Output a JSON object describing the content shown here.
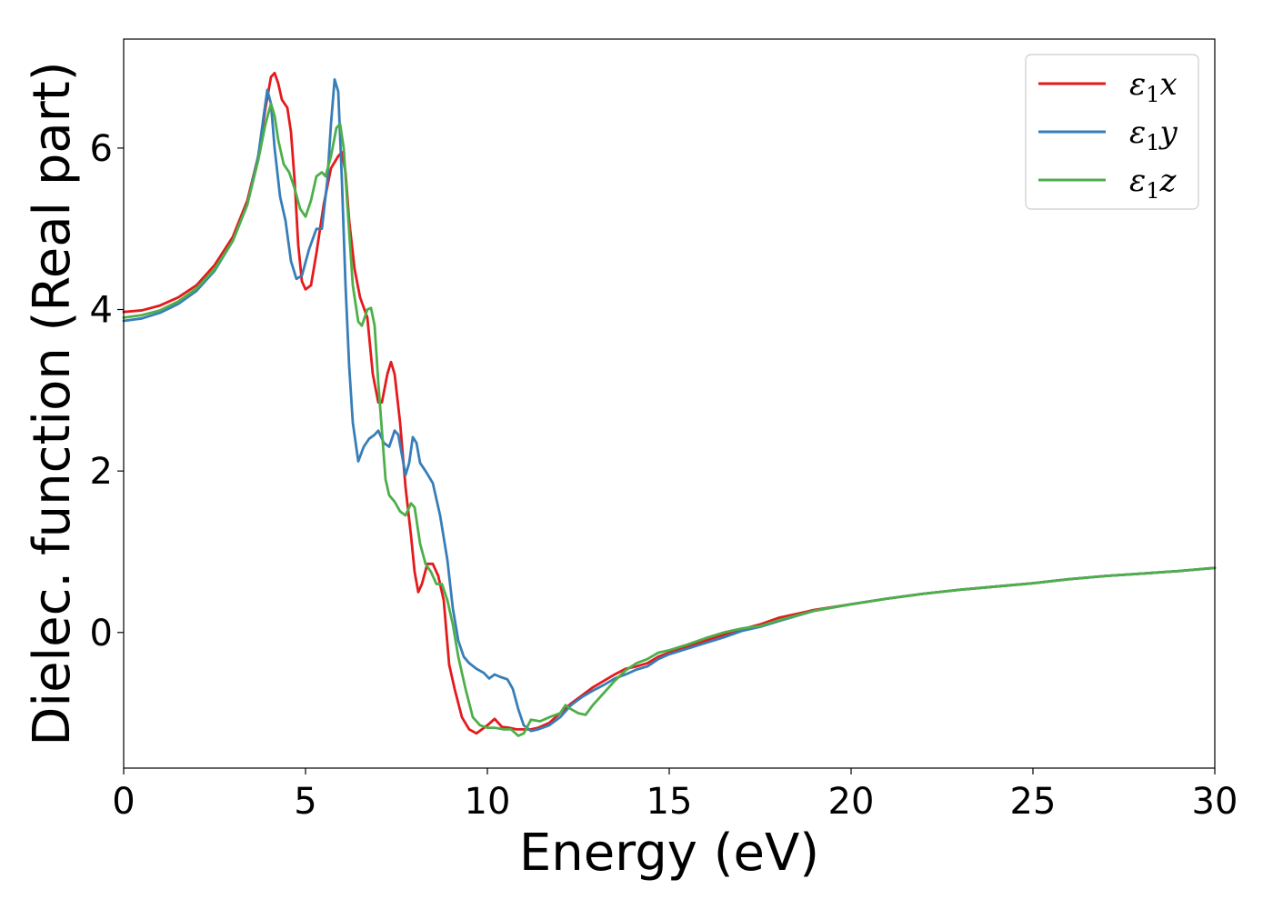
{
  "chart_data": {
    "type": "line",
    "xlabel": "Energy (eV)",
    "ylabel": "Dielec. function (Real part)",
    "xlim": [
      0,
      30
    ],
    "ylim": [
      -1.68,
      7.35
    ],
    "x_ticks": [
      0,
      5,
      10,
      15,
      20,
      25,
      30
    ],
    "y_ticks": [
      0,
      2,
      4,
      6
    ],
    "grid": false,
    "legend_position": "top-right",
    "series": [
      {
        "name": "ε1x",
        "legend_base": "ε",
        "legend_sub": "1",
        "legend_suffix": "x",
        "color": "#e41a1c",
        "points": [
          [
            0,
            3.97
          ],
          [
            0.5,
            3.99
          ],
          [
            1.0,
            4.05
          ],
          [
            1.5,
            4.15
          ],
          [
            2.0,
            4.3
          ],
          [
            2.5,
            4.55
          ],
          [
            3.0,
            4.9
          ],
          [
            3.4,
            5.35
          ],
          [
            3.7,
            5.9
          ],
          [
            3.9,
            6.5
          ],
          [
            4.05,
            6.88
          ],
          [
            4.15,
            6.93
          ],
          [
            4.25,
            6.8
          ],
          [
            4.35,
            6.6
          ],
          [
            4.5,
            6.5
          ],
          [
            4.6,
            6.2
          ],
          [
            4.7,
            5.6
          ],
          [
            4.8,
            4.8
          ],
          [
            4.9,
            4.35
          ],
          [
            5.0,
            4.25
          ],
          [
            5.15,
            4.3
          ],
          [
            5.3,
            4.7
          ],
          [
            5.5,
            5.3
          ],
          [
            5.7,
            5.75
          ],
          [
            5.9,
            5.9
          ],
          [
            6.0,
            5.95
          ],
          [
            6.1,
            5.7
          ],
          [
            6.2,
            5.1
          ],
          [
            6.35,
            4.5
          ],
          [
            6.5,
            4.15
          ],
          [
            6.7,
            3.9
          ],
          [
            6.85,
            3.2
          ],
          [
            7.0,
            2.85
          ],
          [
            7.1,
            2.85
          ],
          [
            7.25,
            3.2
          ],
          [
            7.35,
            3.35
          ],
          [
            7.45,
            3.2
          ],
          [
            7.6,
            2.6
          ],
          [
            7.75,
            1.8
          ],
          [
            7.9,
            1.2
          ],
          [
            8.0,
            0.75
          ],
          [
            8.1,
            0.5
          ],
          [
            8.2,
            0.6
          ],
          [
            8.35,
            0.85
          ],
          [
            8.5,
            0.85
          ],
          [
            8.65,
            0.7
          ],
          [
            8.8,
            0.4
          ],
          [
            8.95,
            -0.4
          ],
          [
            9.1,
            -0.7
          ],
          [
            9.3,
            -1.05
          ],
          [
            9.5,
            -1.2
          ],
          [
            9.7,
            -1.25
          ],
          [
            9.85,
            -1.2
          ],
          [
            10.0,
            -1.15
          ],
          [
            10.2,
            -1.07
          ],
          [
            10.4,
            -1.17
          ],
          [
            10.6,
            -1.18
          ],
          [
            10.8,
            -1.2
          ],
          [
            11.0,
            -1.2
          ],
          [
            11.2,
            -1.2
          ],
          [
            11.4,
            -1.18
          ],
          [
            11.7,
            -1.12
          ],
          [
            12.0,
            -1.0
          ],
          [
            12.3,
            -0.88
          ],
          [
            12.6,
            -0.78
          ],
          [
            12.9,
            -0.68
          ],
          [
            13.2,
            -0.6
          ],
          [
            13.5,
            -0.52
          ],
          [
            13.8,
            -0.45
          ],
          [
            14.1,
            -0.42
          ],
          [
            14.4,
            -0.38
          ],
          [
            14.7,
            -0.3
          ],
          [
            15.0,
            -0.25
          ],
          [
            15.5,
            -0.18
          ],
          [
            16.0,
            -0.1
          ],
          [
            16.5,
            -0.03
          ],
          [
            17.0,
            0.04
          ],
          [
            17.5,
            0.1
          ],
          [
            18.0,
            0.18
          ],
          [
            19.0,
            0.28
          ],
          [
            20.0,
            0.35
          ],
          [
            21.0,
            0.42
          ],
          [
            22.0,
            0.48
          ],
          [
            23.0,
            0.53
          ],
          [
            24.0,
            0.57
          ],
          [
            25.0,
            0.61
          ],
          [
            26.0,
            0.66
          ],
          [
            27.0,
            0.7
          ],
          [
            28.0,
            0.73
          ],
          [
            29.0,
            0.76
          ],
          [
            30.0,
            0.8
          ]
        ]
      },
      {
        "name": "ε1y",
        "legend_base": "ε",
        "legend_sub": "1",
        "legend_suffix": "y",
        "color": "#377eb8",
        "points": [
          [
            0,
            3.86
          ],
          [
            0.5,
            3.89
          ],
          [
            1.0,
            3.96
          ],
          [
            1.5,
            4.07
          ],
          [
            2.0,
            4.23
          ],
          [
            2.5,
            4.48
          ],
          [
            3.0,
            4.85
          ],
          [
            3.4,
            5.3
          ],
          [
            3.7,
            5.9
          ],
          [
            3.85,
            6.4
          ],
          [
            3.95,
            6.72
          ],
          [
            4.05,
            6.55
          ],
          [
            4.15,
            6.0
          ],
          [
            4.3,
            5.4
          ],
          [
            4.45,
            5.1
          ],
          [
            4.6,
            4.6
          ],
          [
            4.75,
            4.38
          ],
          [
            4.9,
            4.42
          ],
          [
            5.1,
            4.75
          ],
          [
            5.3,
            5.0
          ],
          [
            5.45,
            5.0
          ],
          [
            5.6,
            5.6
          ],
          [
            5.7,
            6.3
          ],
          [
            5.8,
            6.85
          ],
          [
            5.9,
            6.7
          ],
          [
            6.0,
            5.6
          ],
          [
            6.1,
            4.3
          ],
          [
            6.2,
            3.3
          ],
          [
            6.3,
            2.6
          ],
          [
            6.45,
            2.12
          ],
          [
            6.6,
            2.3
          ],
          [
            6.75,
            2.4
          ],
          [
            6.9,
            2.45
          ],
          [
            7.0,
            2.5
          ],
          [
            7.15,
            2.35
          ],
          [
            7.3,
            2.3
          ],
          [
            7.45,
            2.5
          ],
          [
            7.55,
            2.45
          ],
          [
            7.65,
            2.2
          ],
          [
            7.75,
            1.95
          ],
          [
            7.85,
            2.1
          ],
          [
            7.95,
            2.42
          ],
          [
            8.05,
            2.35
          ],
          [
            8.15,
            2.1
          ],
          [
            8.3,
            2.0
          ],
          [
            8.5,
            1.85
          ],
          [
            8.7,
            1.45
          ],
          [
            8.9,
            0.9
          ],
          [
            9.05,
            0.3
          ],
          [
            9.2,
            -0.1
          ],
          [
            9.35,
            -0.3
          ],
          [
            9.5,
            -0.38
          ],
          [
            9.7,
            -0.45
          ],
          [
            9.9,
            -0.5
          ],
          [
            10.05,
            -0.57
          ],
          [
            10.2,
            -0.52
          ],
          [
            10.35,
            -0.55
          ],
          [
            10.55,
            -0.58
          ],
          [
            10.7,
            -0.7
          ],
          [
            10.85,
            -0.95
          ],
          [
            11.0,
            -1.15
          ],
          [
            11.2,
            -1.22
          ],
          [
            11.4,
            -1.2
          ],
          [
            11.7,
            -1.15
          ],
          [
            12.0,
            -1.05
          ],
          [
            12.3,
            -0.9
          ],
          [
            12.6,
            -0.8
          ],
          [
            12.9,
            -0.72
          ],
          [
            13.2,
            -0.65
          ],
          [
            13.5,
            -0.57
          ],
          [
            13.8,
            -0.52
          ],
          [
            14.1,
            -0.46
          ],
          [
            14.4,
            -0.42
          ],
          [
            14.7,
            -0.33
          ],
          [
            15.0,
            -0.27
          ],
          [
            15.5,
            -0.2
          ],
          [
            16.0,
            -0.13
          ],
          [
            16.5,
            -0.06
          ],
          [
            17.0,
            0.02
          ],
          [
            17.5,
            0.07
          ],
          [
            18.0,
            0.14
          ],
          [
            19.0,
            0.27
          ],
          [
            20.0,
            0.35
          ],
          [
            21.0,
            0.42
          ],
          [
            22.0,
            0.48
          ],
          [
            23.0,
            0.53
          ],
          [
            24.0,
            0.57
          ],
          [
            25.0,
            0.61
          ],
          [
            26.0,
            0.66
          ],
          [
            27.0,
            0.7
          ],
          [
            28.0,
            0.73
          ],
          [
            29.0,
            0.76
          ],
          [
            30.0,
            0.8
          ]
        ]
      },
      {
        "name": "ε1z",
        "legend_base": "ε",
        "legend_sub": "1",
        "legend_suffix": "z",
        "color": "#4daf4a",
        "points": [
          [
            0,
            3.9
          ],
          [
            0.5,
            3.93
          ],
          [
            1.0,
            3.99
          ],
          [
            1.5,
            4.1
          ],
          [
            2.0,
            4.26
          ],
          [
            2.5,
            4.5
          ],
          [
            3.0,
            4.85
          ],
          [
            3.4,
            5.3
          ],
          [
            3.7,
            5.85
          ],
          [
            3.9,
            6.3
          ],
          [
            4.05,
            6.55
          ],
          [
            4.15,
            6.4
          ],
          [
            4.25,
            6.1
          ],
          [
            4.4,
            5.8
          ],
          [
            4.55,
            5.7
          ],
          [
            4.7,
            5.5
          ],
          [
            4.85,
            5.25
          ],
          [
            5.0,
            5.15
          ],
          [
            5.15,
            5.35
          ],
          [
            5.3,
            5.65
          ],
          [
            5.45,
            5.7
          ],
          [
            5.55,
            5.65
          ],
          [
            5.7,
            5.9
          ],
          [
            5.85,
            6.25
          ],
          [
            5.95,
            6.3
          ],
          [
            6.05,
            6.0
          ],
          [
            6.15,
            5.3
          ],
          [
            6.3,
            4.3
          ],
          [
            6.45,
            3.85
          ],
          [
            6.55,
            3.8
          ],
          [
            6.7,
            4.0
          ],
          [
            6.8,
            4.02
          ],
          [
            6.9,
            3.8
          ],
          [
            7.0,
            3.1
          ],
          [
            7.1,
            2.5
          ],
          [
            7.2,
            1.9
          ],
          [
            7.3,
            1.7
          ],
          [
            7.45,
            1.62
          ],
          [
            7.6,
            1.5
          ],
          [
            7.75,
            1.45
          ],
          [
            7.9,
            1.6
          ],
          [
            8.0,
            1.55
          ],
          [
            8.15,
            1.1
          ],
          [
            8.3,
            0.85
          ],
          [
            8.45,
            0.75
          ],
          [
            8.6,
            0.6
          ],
          [
            8.75,
            0.6
          ],
          [
            8.9,
            0.4
          ],
          [
            9.05,
            0.1
          ],
          [
            9.2,
            -0.3
          ],
          [
            9.4,
            -0.7
          ],
          [
            9.6,
            -1.05
          ],
          [
            9.8,
            -1.15
          ],
          [
            10.0,
            -1.18
          ],
          [
            10.2,
            -1.18
          ],
          [
            10.45,
            -1.2
          ],
          [
            10.65,
            -1.2
          ],
          [
            10.85,
            -1.28
          ],
          [
            11.0,
            -1.25
          ],
          [
            11.2,
            -1.08
          ],
          [
            11.45,
            -1.1
          ],
          [
            11.7,
            -1.05
          ],
          [
            12.0,
            -1.0
          ],
          [
            12.15,
            -0.9
          ],
          [
            12.3,
            -0.95
          ],
          [
            12.5,
            -1.0
          ],
          [
            12.7,
            -1.02
          ],
          [
            12.9,
            -0.9
          ],
          [
            13.2,
            -0.75
          ],
          [
            13.5,
            -0.6
          ],
          [
            13.8,
            -0.47
          ],
          [
            14.1,
            -0.38
          ],
          [
            14.4,
            -0.33
          ],
          [
            14.7,
            -0.25
          ],
          [
            15.0,
            -0.22
          ],
          [
            15.5,
            -0.15
          ],
          [
            16.0,
            -0.07
          ],
          [
            16.5,
            0.0
          ],
          [
            17.0,
            0.05
          ],
          [
            17.5,
            0.08
          ],
          [
            18.0,
            0.15
          ],
          [
            19.0,
            0.27
          ],
          [
            20.0,
            0.35
          ],
          [
            21.0,
            0.42
          ],
          [
            22.0,
            0.48
          ],
          [
            23.0,
            0.53
          ],
          [
            24.0,
            0.57
          ],
          [
            25.0,
            0.61
          ],
          [
            26.0,
            0.66
          ],
          [
            27.0,
            0.7
          ],
          [
            28.0,
            0.73
          ],
          [
            29.0,
            0.76
          ],
          [
            30.0,
            0.8
          ]
        ]
      }
    ]
  }
}
